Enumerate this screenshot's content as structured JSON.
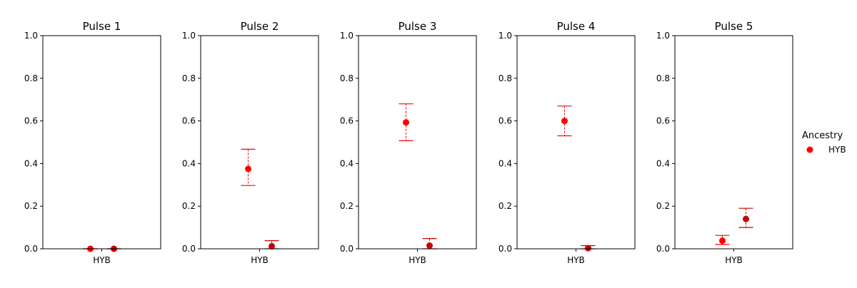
{
  "chart_data": [
    {
      "type": "scatter",
      "title": "Pulse 1",
      "categories": [
        "HYB"
      ],
      "ylim": [
        0,
        1
      ],
      "yticks": [
        "0.0",
        "0.2",
        "0.4",
        "0.6",
        "0.8",
        "1.0"
      ],
      "series": [
        {
          "color": "#ff0000",
          "values": [
            0.0
          ],
          "lower": [
            0.0
          ],
          "upper": [
            0.0
          ]
        },
        {
          "color": "#cc0000",
          "values": [
            0.0
          ],
          "lower": [
            0.0
          ],
          "upper": [
            0.0
          ]
        }
      ]
    },
    {
      "type": "scatter",
      "title": "Pulse 2",
      "categories": [
        "HYB"
      ],
      "ylim": [
        0,
        1
      ],
      "yticks": [
        "0.0",
        "0.2",
        "0.4",
        "0.6",
        "0.8",
        "1.0"
      ],
      "series": [
        {
          "color": "#ff0000",
          "values": [
            0.375
          ],
          "lower": [
            0.297
          ],
          "upper": [
            0.467
          ]
        },
        {
          "color": "#cc0000",
          "values": [
            0.012
          ],
          "lower": [
            0.0
          ],
          "upper": [
            0.038
          ]
        }
      ]
    },
    {
      "type": "scatter",
      "title": "Pulse 3",
      "categories": [
        "HYB"
      ],
      "ylim": [
        0,
        1
      ],
      "yticks": [
        "0.0",
        "0.2",
        "0.4",
        "0.6",
        "0.8",
        "1.0"
      ],
      "series": [
        {
          "color": "#ff0000",
          "values": [
            0.593
          ],
          "lower": [
            0.507
          ],
          "upper": [
            0.68
          ]
        },
        {
          "color": "#cc0000",
          "values": [
            0.015
          ],
          "lower": [
            0.0
          ],
          "upper": [
            0.048
          ]
        }
      ]
    },
    {
      "type": "scatter",
      "title": "Pulse 4",
      "categories": [
        "HYB"
      ],
      "ylim": [
        0,
        1
      ],
      "yticks": [
        "0.0",
        "0.2",
        "0.4",
        "0.6",
        "0.8",
        "1.0"
      ],
      "series": [
        {
          "color": "#ff0000",
          "values": [
            0.6
          ],
          "lower": [
            0.53
          ],
          "upper": [
            0.67
          ]
        },
        {
          "color": "#cc0000",
          "values": [
            0.003
          ],
          "lower": [
            0.0
          ],
          "upper": [
            0.015
          ]
        }
      ]
    },
    {
      "type": "scatter",
      "title": "Pulse 5",
      "categories": [
        "HYB"
      ],
      "ylim": [
        0,
        1
      ],
      "yticks": [
        "0.0",
        "0.2",
        "0.4",
        "0.6",
        "0.8",
        "1.0"
      ],
      "series": [
        {
          "color": "#ff0000",
          "values": [
            0.038
          ],
          "lower": [
            0.02
          ],
          "upper": [
            0.063
          ]
        },
        {
          "color": "#cc0000",
          "values": [
            0.14
          ],
          "lower": [
            0.1
          ],
          "upper": [
            0.19
          ]
        }
      ]
    }
  ],
  "legend": {
    "title": "Ancestry",
    "items": [
      {
        "label": "HYB",
        "color": "#ff0000"
      }
    ],
    "placement": "right"
  }
}
